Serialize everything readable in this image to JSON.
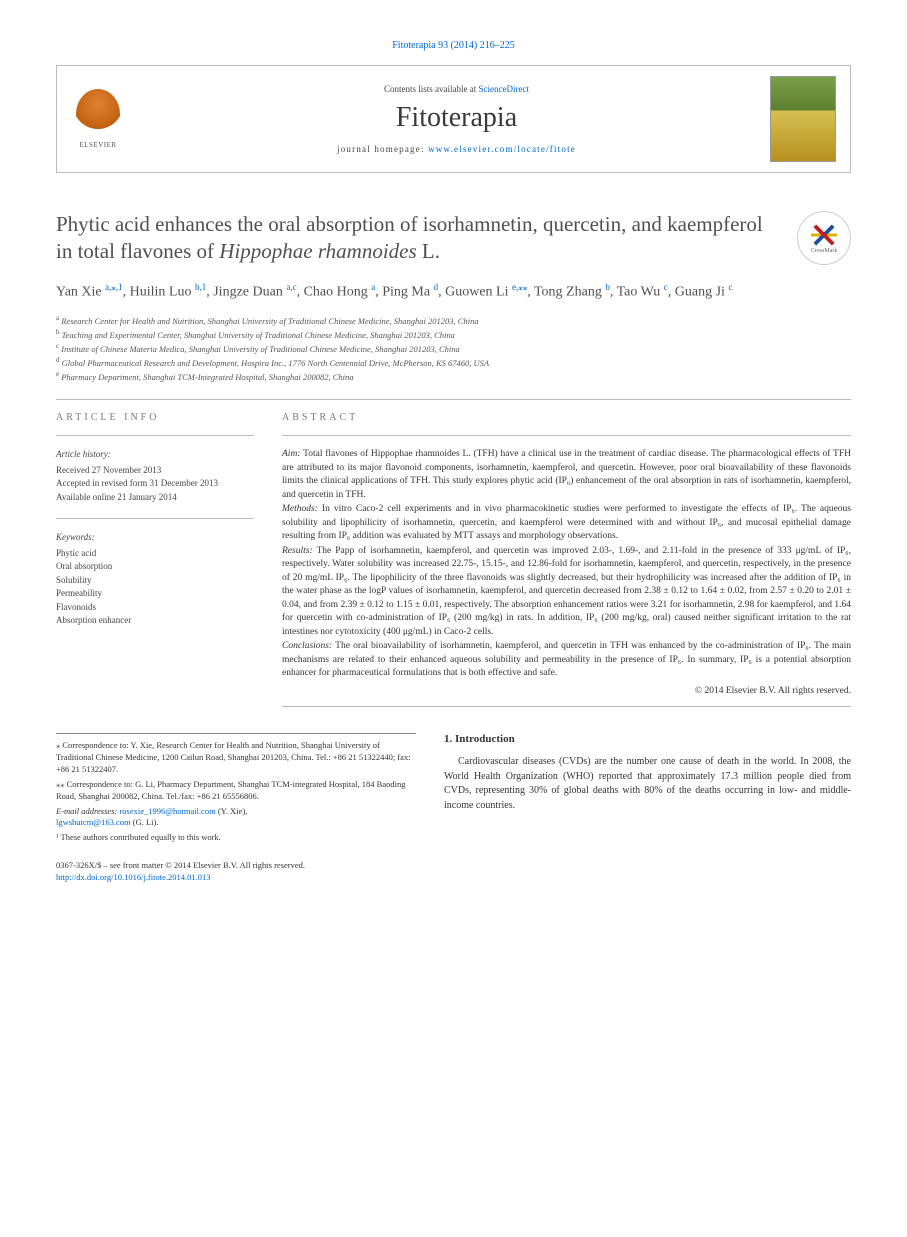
{
  "citation": "Fitoterapia 93 (2014) 216–225",
  "header": {
    "contents_prefix": "Contents lists available at ",
    "contents_link": "ScienceDirect",
    "journal": "Fitoterapia",
    "homepage_prefix": "journal homepage: ",
    "homepage_url": "www.elsevier.com/locate/fitote",
    "publisher": "ELSEVIER",
    "cover_label": "Fitoterapia"
  },
  "title_parts": {
    "p1": "Phytic acid enhances the oral absorption of isorhamnetin, quercetin, and kaempferol in total flavones of ",
    "p2_italic": "Hippophae rhamnoides",
    "p3": " L."
  },
  "crossmark": "CrossMark",
  "authors_html": "Yan Xie <sup>a,</sup><sup>⁎</sup><sup>,1</sup>, Huilin Luo <sup>b,1</sup>, Jingze Duan <sup>a,c</sup>, Chao Hong <sup>a</sup>, Ping Ma <sup>d</sup>, Guowen Li <sup>e,</sup><sup>⁎⁎</sup>, Tong Zhang <sup>b</sup>, Tao Wu <sup>c</sup>, Guang Ji <sup>c</sup>",
  "affiliations": [
    {
      "sup": "a",
      "text": "Research Center for Health and Nutrition, Shanghai University of Traditional Chinese Medicine, Shanghai 201203, China"
    },
    {
      "sup": "b",
      "text": "Teaching and Experimental Center, Shanghai University of Traditional Chinese Medicine, Shanghai 201203, China"
    },
    {
      "sup": "c",
      "text": "Institute of Chinese Materia Medica, Shanghai University of Traditional Chinese Medicine, Shanghai 201203, China"
    },
    {
      "sup": "d",
      "text": "Global Pharmaceutical Research and Development, Hospira Inc., 1776 North Centennial Drive, McPherson, KS 67460, USA"
    },
    {
      "sup": "e",
      "text": "Pharmacy Department, Shanghai TCM-Integrated Hospital, Shanghai 200082, China"
    }
  ],
  "info": {
    "heading": "ARTICLE INFO",
    "history_label": "Article history:",
    "history": [
      "Received 27 November 2013",
      "Accepted in revised form 31 December 2013",
      "Available online 21 January 2014"
    ],
    "keywords_label": "Keywords:",
    "keywords": [
      "Phytic acid",
      "Oral absorption",
      "Solubility",
      "Permeability",
      "Flavonoids",
      "Absorption enhancer"
    ]
  },
  "abstract": {
    "heading": "ABSTRACT",
    "aim_label": "Aim:",
    "aim": " Total flavones of Hippophae rhamnoides L. (TFH) have a clinical use in the treatment of cardiac disease. The pharmacological effects of TFH are attributed to its major flavonoid components, isorhamnetin, kaempferol, and quercetin. However, poor oral bioavailability of these flavonoids limits the clinical applications of TFH. This study explores phytic acid (IP₆) enhancement of the oral absorption in rats of isorhamnetin, kaempferol, and quercetin in TFH.",
    "methods_label": "Methods:",
    "methods": " In vitro Caco-2 cell experiments and in vivo pharmacokinetic studies were performed to investigate the effects of IP₆. The aqueous solubility and lipophilicity of isorhamnetin, quercetin, and kaempferol were determined with and without IP₆, and mucosal epithelial damage resulting from IP₆ addition was evaluated by MTT assays and morphology observations.",
    "results_label": "Results:",
    "results": " The Papp of isorhamnetin, kaempferol, and quercetin was improved 2.03-, 1.69-, and 2.11-fold in the presence of 333 μg/mL of IP₆, respectively. Water solubility was increased 22.75-, 15.15-, and 12.86-fold for isorhamnetin, kaempferol, and quercetin, respectively, in the presence of 20 mg/mL IP₆. The lipophilicity of the three flavonoids was slightly decreased, but their hydrophilicity was increased after the addition of IP₆ in the water phase as the logP values of isorhamnetin, kaempferol, and quercetin decreased from 2.38 ± 0.12 to 1.64 ± 0.02, from 2.57 ± 0.20 to 2.01 ± 0.04, and from 2.39 ± 0.12 to 1.15 ± 0.01, respectively. The absorption enhancement ratios were 3.21 for isorhamnetin, 2.98 for kaempferol, and 1.64 for quercetin with co-administration of IP₆ (200 mg/kg) in rats. In addition, IP₆ (200 mg/kg, oral) caused neither significant irritation to the rat intestines nor cytotoxicity (400 μg/mL) in Caco-2 cells.",
    "conclusions_label": "Conclusions:",
    "conclusions": " The oral bioavailability of isorhamnetin, kaempferol, and quercetin in TFH was enhanced by the co-administration of IP₆. The main mechanisms are related to their enhanced aqueous solubility and permeability in the presence of IP₆. In summary, IP₆ is a potential absorption enhancer for pharmaceutical formulations that is both effective and safe.",
    "copyright": "© 2014 Elsevier B.V. All rights reserved."
  },
  "correspondence": {
    "l1": "⁎ Correspondence to: Y. Xie, Research Center for Health and Nutrition, Shanghai University of Traditional Chinese Medicine, 1200 Cailun Road, Shanghai 201203, China. Tel.: +86 21 51322440; fax: +86 21 51322407.",
    "l2": "⁎⁎ Correspondence to: G. Li, Pharmacy Department, Shanghai TCM-integrated Hospital, 184 Baoding Road, Shanghai 200082, China. Tel./fax: +86 21 65556806.",
    "email_label": "E-mail addresses: ",
    "email1": "rosexie_1996@hotmail.com",
    "email1_owner": " (Y. Xie), ",
    "email2": "lgwshutcm@163.com",
    "email2_owner": " (G. Li).",
    "equal": "¹ These authors contributed equally to this work."
  },
  "intro": {
    "heading": "1. Introduction",
    "text": "Cardiovascular diseases (CVDs) are the number one cause of death in the world. In 2008, the World Health Organization (WHO) reported that approximately 17.3 million people died from CVDs, representing 30% of global deaths with 80% of the deaths occurring in low- and middle-income countries."
  },
  "footer": {
    "line1": "0367-326X/$ – see front matter © 2014 Elsevier B.V. All rights reserved.",
    "doi": "http://dx.doi.org/10.1016/j.fitote.2014.01.013"
  },
  "colors": {
    "link": "#0066cc",
    "text": "#333333",
    "heading_gray": "#777777",
    "rule": "#bbbbbb"
  }
}
